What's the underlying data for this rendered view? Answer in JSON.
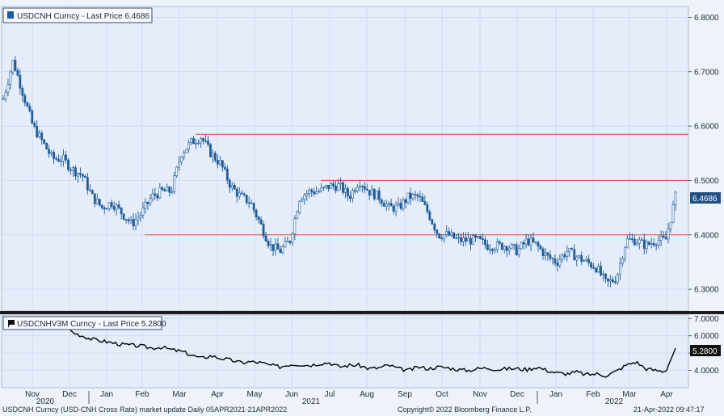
{
  "chart_data": [
    {
      "type": "candlestick",
      "legend": "USDCNH Curncy - Last Price 6.4686",
      "last_value_label": "6.4686",
      "y_ticks": [
        "6.8000",
        "6.7000",
        "6.6000",
        "6.5000",
        "6.4000",
        "6.3000"
      ],
      "ylim": [
        6.26,
        6.82
      ],
      "reference_lines": [
        {
          "value": 6.585,
          "from_month": "Mar"
        },
        {
          "value": 6.5,
          "from_month": "Jun"
        },
        {
          "value": 6.4,
          "from_month": "Feb"
        }
      ],
      "price_path": [
        6.65,
        6.72,
        6.66,
        6.6,
        6.57,
        6.54,
        6.54,
        6.52,
        6.51,
        6.47,
        6.45,
        6.46,
        6.44,
        6.42,
        6.44,
        6.47,
        6.48,
        6.48,
        6.55,
        6.57,
        6.58,
        6.55,
        6.53,
        6.49,
        6.47,
        6.46,
        6.42,
        6.38,
        6.37,
        6.39,
        6.47,
        6.48,
        6.48,
        6.49,
        6.49,
        6.47,
        6.5,
        6.48,
        6.47,
        6.45,
        6.45,
        6.47,
        6.47,
        6.44,
        6.4,
        6.4,
        6.39,
        6.39,
        6.39,
        6.38,
        6.38,
        6.38,
        6.37,
        6.39,
        6.38,
        6.36,
        6.35,
        6.37,
        6.36,
        6.35,
        6.34,
        6.31,
        6.32,
        6.39,
        6.39,
        6.38,
        6.39,
        6.39,
        6.47
      ]
    },
    {
      "type": "line",
      "legend": "USDCNHV3M Curncy - Last Price 5.2800",
      "last_value_label": "5.2800",
      "y_ticks": [
        "7.0000",
        "6.0000",
        "5.0000",
        "4.0000"
      ],
      "ylim": [
        3.0,
        7.2
      ],
      "values": [
        7.1,
        6.6,
        6.9,
        6.6,
        6.5,
        6.7,
        6.8,
        6.2,
        6.0,
        5.8,
        5.7,
        5.6,
        5.5,
        5.45,
        5.4,
        5.3,
        5.35,
        5.2,
        5.1,
        4.9,
        4.7,
        4.85,
        4.7,
        4.6,
        4.45,
        4.5,
        4.45,
        4.3,
        4.2,
        4.35,
        4.35,
        4.3,
        4.4,
        4.45,
        4.2,
        4.3,
        4.3,
        4.1,
        4.15,
        4.3,
        4.1,
        4.0,
        4.2,
        4.1,
        4.2,
        4.15,
        4.05,
        4.0,
        4.1,
        4.15,
        4.05,
        4.1,
        4.1,
        4.05,
        4.2,
        4.0,
        3.85,
        3.8,
        3.9,
        3.75,
        3.8,
        3.7,
        3.95,
        4.3,
        4.5,
        4.1,
        4.0,
        3.95,
        5.28
      ]
    }
  ],
  "x_axis": {
    "months": [
      "Nov",
      "Dec",
      "Jan",
      "Feb",
      "Mar",
      "Apr",
      "May",
      "Jun",
      "Jul",
      "Aug",
      "Sep",
      "Oct",
      "Nov",
      "Dec",
      "Jan",
      "Feb",
      "Mar",
      "Apr"
    ],
    "years": [
      "2020",
      "2021",
      "2022"
    ]
  },
  "footer": {
    "left": "USDCNH Curncy (USD-CNH Cross Rate) market update  Daily 05APR2021-21APR2022",
    "center": "Copyright© 2022 Bloomberg Finance L.P.",
    "right": "21-Apr-2022 09:47:17"
  },
  "colors": {
    "candle": "#1f5c99",
    "reference_line": "#e04444",
    "volatility_line": "#000000",
    "background": "#e5edfa"
  }
}
